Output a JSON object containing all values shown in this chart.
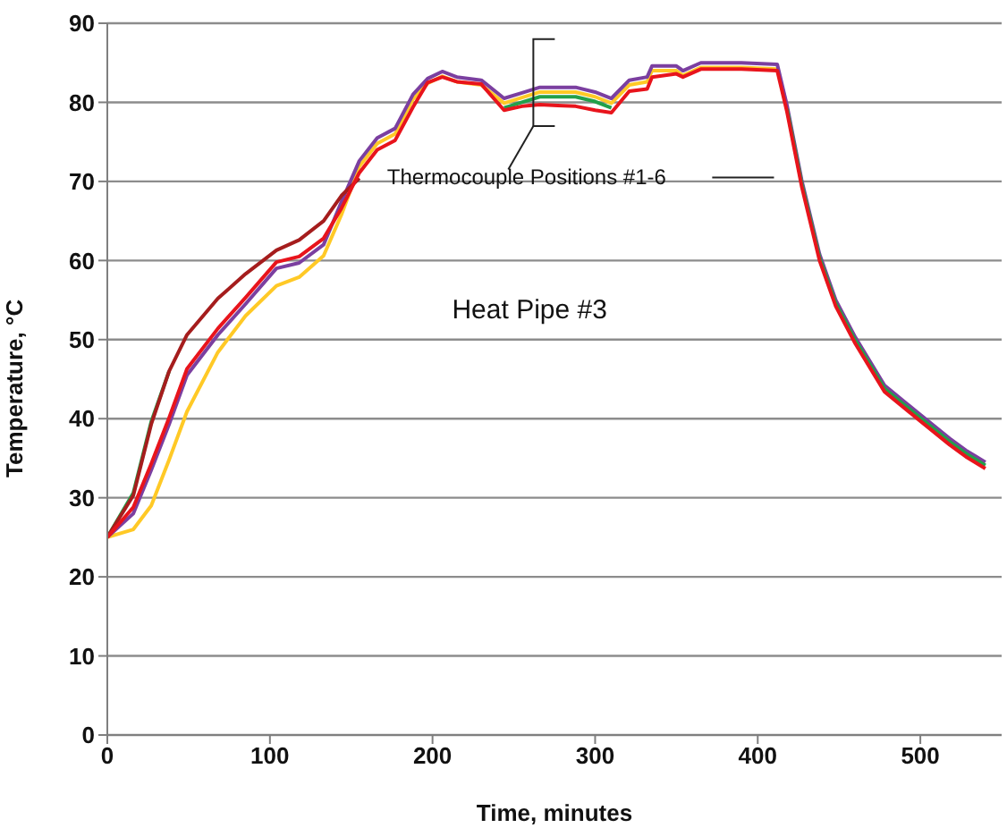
{
  "chart_data": {
    "type": "line",
    "xlabel": "Time, minutes",
    "ylabel": "Temperature, °C",
    "annotations": [
      "Thermocouple Positions #1-6",
      "Heat Pipe #3"
    ],
    "x": [
      0,
      16,
      27,
      38,
      49,
      68,
      85,
      104,
      118,
      133,
      144,
      155,
      166,
      177,
      188,
      197,
      206,
      215,
      230,
      244,
      255,
      266,
      277,
      288,
      300,
      310,
      321,
      332,
      335,
      350,
      354,
      365,
      390,
      412,
      418,
      427,
      438,
      448,
      460,
      478,
      500,
      518,
      528,
      540
    ],
    "series": [
      {
        "color": "#ffc926",
        "values": [
          25,
          26,
          29,
          34.8,
          40.9,
          48.4,
          53,
          56.8,
          57.9,
          60.6,
          65.8,
          71.9,
          74.8,
          76,
          80.4,
          82.4,
          83.3,
          82.6,
          82.2,
          79.9,
          80.6,
          81.3,
          81.3,
          81.3,
          80.7,
          79.9,
          82.2,
          82.6,
          84,
          84,
          83.4,
          84.4,
          84.4,
          84.2,
          79.5,
          null,
          null,
          null,
          null,
          null,
          null,
          null,
          null,
          null
        ]
      },
      {
        "color": "#7b3fa0",
        "values": [
          25,
          28,
          33.5,
          39.3,
          45.5,
          50.6,
          54.5,
          59,
          59.7,
          62,
          67.4,
          72.6,
          75.5,
          76.7,
          81,
          83,
          83.9,
          83.2,
          82.8,
          80.5,
          81.2,
          81.9,
          81.9,
          81.9,
          81.3,
          80.5,
          82.8,
          83.2,
          84.6,
          84.6,
          84,
          85,
          85,
          84.8,
          79.6,
          70.2,
          60.8,
          55,
          50.3,
          44.2,
          40.5,
          37.5,
          36,
          34.5
        ]
      },
      {
        "color": "#22a04a",
        "values": [
          25,
          30.6,
          39.6,
          46,
          null,
          null,
          null,
          null,
          null,
          null,
          null,
          null,
          null,
          null,
          null,
          null,
          null,
          null,
          null,
          79.3,
          80,
          80.7,
          80.7,
          80.7,
          80.1,
          79.3,
          null,
          null,
          null,
          null,
          null,
          null,
          null,
          null,
          79.2,
          69.8,
          60.4,
          54.6,
          49.9,
          43.8,
          40.1,
          37.1,
          35.6,
          34.1
        ]
      },
      {
        "color": "#a51d1d",
        "values": [
          25,
          30.3,
          39.3,
          46,
          50.6,
          55.2,
          58.3,
          61.3,
          62.6,
          65,
          68.2,
          70.4,
          null,
          null,
          null,
          null,
          null,
          null,
          null,
          null,
          null,
          null,
          null,
          null,
          null,
          null,
          null,
          null,
          null,
          null,
          null,
          null,
          null,
          null,
          null,
          null,
          null,
          null,
          null,
          null,
          null,
          null,
          null,
          null
        ]
      },
      {
        "color": "#e8141c",
        "values": [
          25,
          28.8,
          34.3,
          40.1,
          46.3,
          51.4,
          55.3,
          59.8,
          60.5,
          62.8,
          66.6,
          71.1,
          74,
          75.2,
          79.4,
          82.5,
          83.2,
          82.6,
          82.3,
          79,
          79.5,
          79.7,
          79.6,
          79.5,
          79,
          78.7,
          81.4,
          81.7,
          83.2,
          83.6,
          83.2,
          84.2,
          84.2,
          84,
          78.8,
          69.4,
          60,
          54.2,
          49.5,
          43.4,
          39.7,
          36.7,
          35.2,
          33.7
        ]
      }
    ],
    "xlim": [
      0,
      550
    ],
    "xticks": [
      0,
      100,
      200,
      300,
      400,
      500
    ],
    "ylim": [
      0,
      90
    ],
    "yticks": [
      0,
      10,
      20,
      30,
      40,
      50,
      60,
      70,
      80,
      90
    ],
    "grid": "y",
    "legend": false,
    "marker": "none",
    "line_style": "solid"
  }
}
